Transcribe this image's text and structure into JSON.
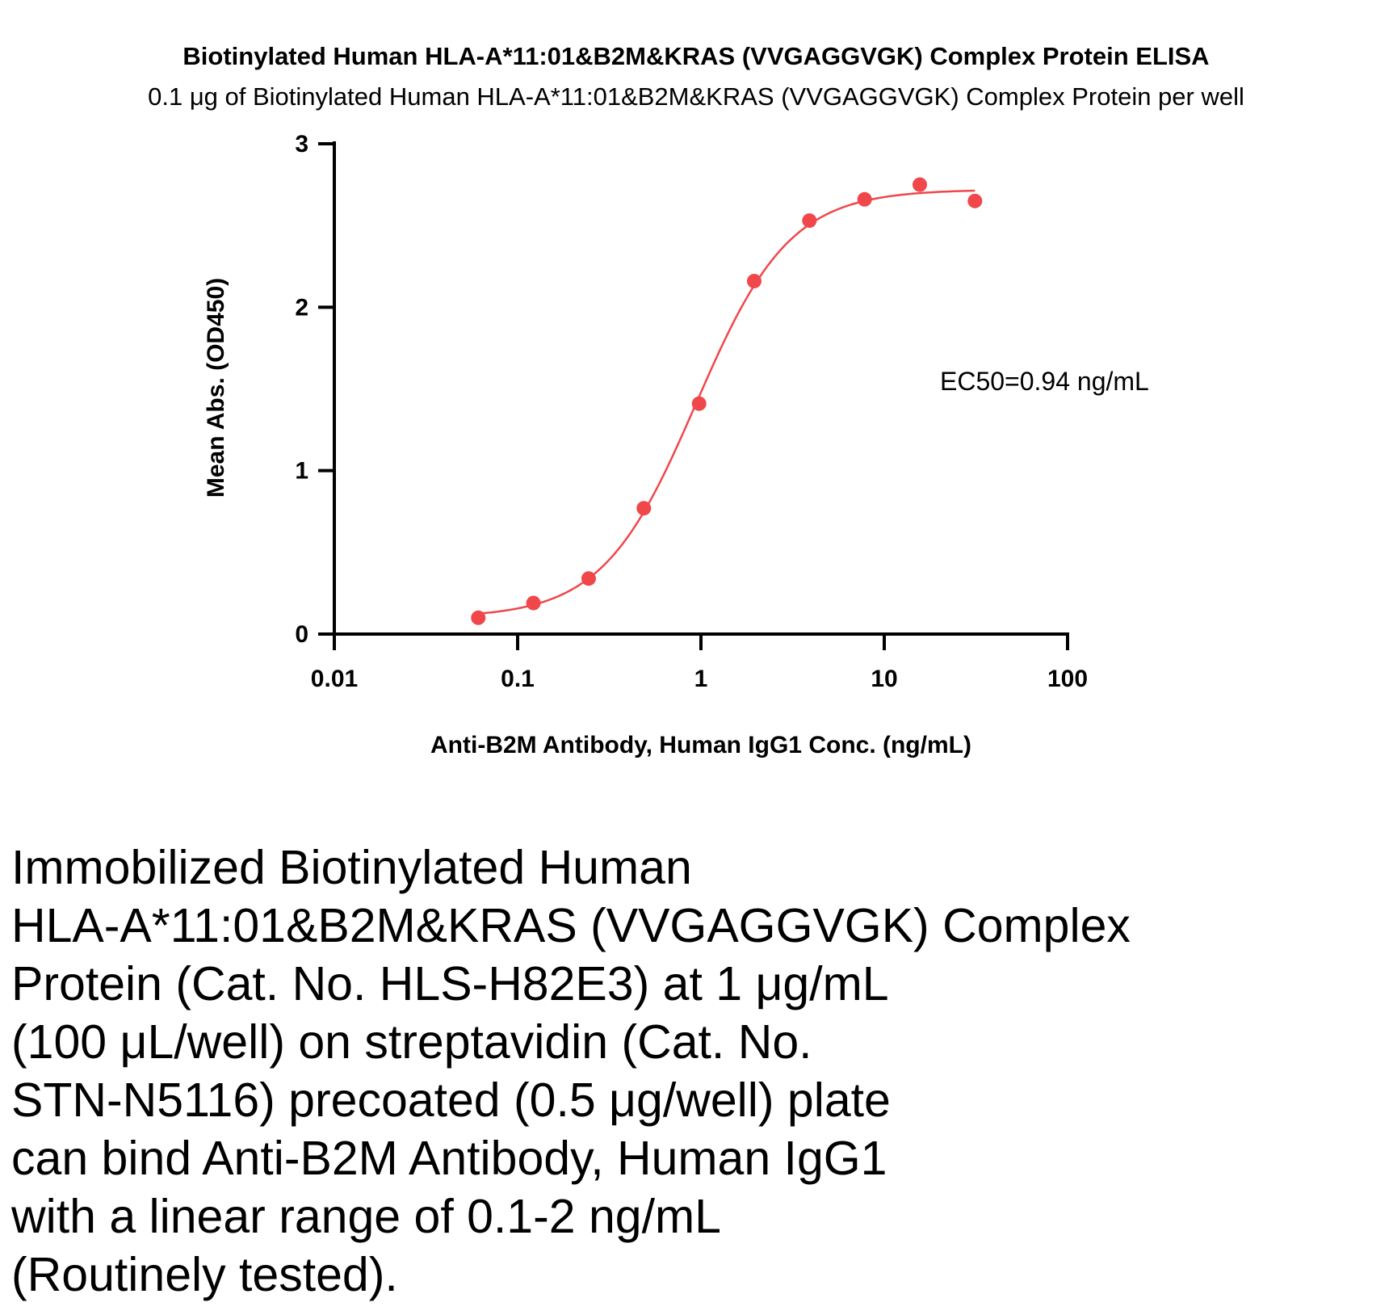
{
  "chart_data": {
    "type": "scatter",
    "title": "Biotinylated Human HLA-A*11:01&B2M&KRAS (VVGAGGVGK) Complex Protein ELISA",
    "subtitle": "0.1 μg of Biotinylated Human HLA-A*11:01&B2M&KRAS (VVGAGGVGK) Complex Protein per well",
    "xlabel": "Anti-B2M Antibody, Human IgG1 Conc. (ng/mL)",
    "ylabel": "Mean Abs. (OD450)",
    "xscale": "log",
    "xlim": [
      0.01,
      100
    ],
    "ylim": [
      0,
      3
    ],
    "x_ticks": [
      "0.01",
      "0.1",
      "1",
      "10",
      "100"
    ],
    "y_ticks": [
      "0",
      "1",
      "2",
      "3"
    ],
    "x": [
      0.061,
      0.122,
      0.244,
      0.488,
      0.977,
      1.953,
      3.906,
      7.813,
      15.625,
      31.25
    ],
    "y": [
      0.1,
      0.19,
      0.34,
      0.77,
      1.41,
      2.16,
      2.53,
      2.66,
      2.75,
      2.65
    ],
    "fit": "4PL",
    "color": "#f0474b",
    "annotation": "EC50=0.94 ng/mL",
    "grid": false,
    "legend": "none"
  },
  "caption": {
    "lines": [
      "Immobilized Biotinylated Human",
      "HLA-A*11:01&B2M&KRAS (VVGAGGVGK) Complex",
      "Protein (Cat. No. HLS-H82E3) at 1 μg/mL",
      "(100 μL/well) on streptavidin (Cat. No.",
      "STN-N5116) precoated (0.5 μg/well) plate",
      "can bind Anti-B2M Antibody, Human IgG1",
      "with a linear range of 0.1-2 ng/mL",
      "(Routinely tested)."
    ]
  }
}
